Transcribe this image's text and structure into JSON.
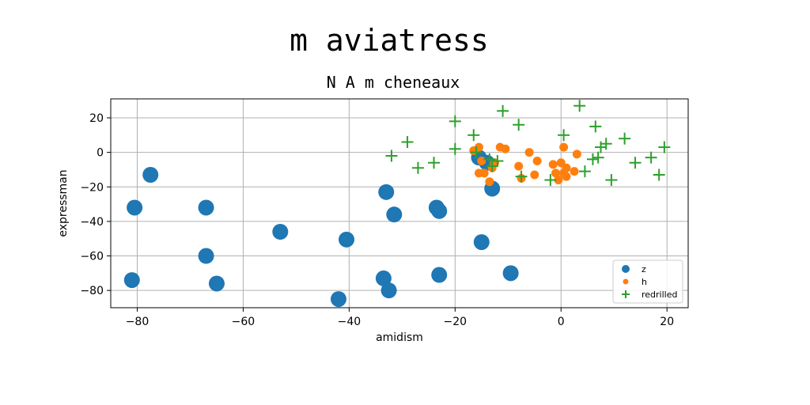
{
  "chart_data": {
    "type": "scatter",
    "title": "m aviatress",
    "subtitle": "N A m cheneaux",
    "xlabel": "amidism",
    "ylabel": "expressman",
    "xlim": [
      -85,
      24
    ],
    "ylim": [
      -90,
      31
    ],
    "xticks": [
      -80,
      -60,
      -40,
      -20,
      0,
      20
    ],
    "yticks": [
      20,
      0,
      -20,
      -40,
      -60,
      -80
    ],
    "grid": true,
    "legend_position": "bottom-right",
    "series": [
      {
        "name": "z",
        "marker": "circle",
        "color": "#1f77b4",
        "points": [
          [
            -77.5,
            -13
          ],
          [
            -80.5,
            -32
          ],
          [
            -67,
            -32
          ],
          [
            -81,
            -74
          ],
          [
            -67,
            -60
          ],
          [
            -65,
            -76
          ],
          [
            -53,
            -46
          ],
          [
            -40.5,
            -50.5
          ],
          [
            -42,
            -85
          ],
          [
            -33,
            -23
          ],
          [
            -31.5,
            -36
          ],
          [
            -23.5,
            -32
          ],
          [
            -23,
            -34
          ],
          [
            -33.5,
            -73
          ],
          [
            -32.5,
            -80
          ],
          [
            -23,
            -71
          ],
          [
            -15,
            -52
          ],
          [
            -9.5,
            -70
          ],
          [
            -13,
            -21
          ],
          [
            -15.5,
            -3
          ],
          [
            -14,
            -6
          ]
        ]
      },
      {
        "name": "h",
        "marker": "circle",
        "color": "#ff7f0e",
        "points": [
          [
            -16.5,
            1
          ],
          [
            -15.5,
            3
          ],
          [
            -15,
            -5
          ],
          [
            -15.5,
            -12
          ],
          [
            -14.5,
            -12
          ],
          [
            -13.5,
            -17
          ],
          [
            -13,
            -9
          ],
          [
            -12.5,
            -6
          ],
          [
            -11.5,
            3
          ],
          [
            -10.5,
            2
          ],
          [
            -8,
            -8
          ],
          [
            -7.5,
            -15
          ],
          [
            -6,
            0
          ],
          [
            -5,
            -13
          ],
          [
            -4.5,
            -5
          ],
          [
            -1.5,
            -7
          ],
          [
            -1,
            -12
          ],
          [
            -0.5,
            -16
          ],
          [
            0,
            -6
          ],
          [
            0.5,
            3
          ],
          [
            0.5,
            -12
          ],
          [
            1,
            -9
          ],
          [
            1,
            -14
          ],
          [
            2.5,
            -11
          ],
          [
            3,
            -1
          ]
        ]
      },
      {
        "name": "redrilled",
        "marker": "plus",
        "color": "#2ca02c",
        "points": [
          [
            -32,
            -2
          ],
          [
            -29,
            6
          ],
          [
            -27,
            -9
          ],
          [
            -24,
            -6
          ],
          [
            -20,
            2
          ],
          [
            -20,
            18
          ],
          [
            -16.5,
            10
          ],
          [
            -16,
            0
          ],
          [
            -13.5,
            -4
          ],
          [
            -13,
            -8
          ],
          [
            -12,
            -5
          ],
          [
            -11,
            24
          ],
          [
            -8,
            16
          ],
          [
            -7.5,
            -14
          ],
          [
            -2,
            -16
          ],
          [
            0.5,
            10
          ],
          [
            3.5,
            27
          ],
          [
            4.5,
            -11
          ],
          [
            6,
            -4
          ],
          [
            6.5,
            15
          ],
          [
            7,
            -3
          ],
          [
            7.5,
            3
          ],
          [
            8.5,
            5
          ],
          [
            9.5,
            -16
          ],
          [
            12,
            8
          ],
          [
            14,
            -6
          ],
          [
            17,
            -3
          ],
          [
            18.5,
            -13
          ],
          [
            19.5,
            3
          ]
        ]
      }
    ]
  }
}
